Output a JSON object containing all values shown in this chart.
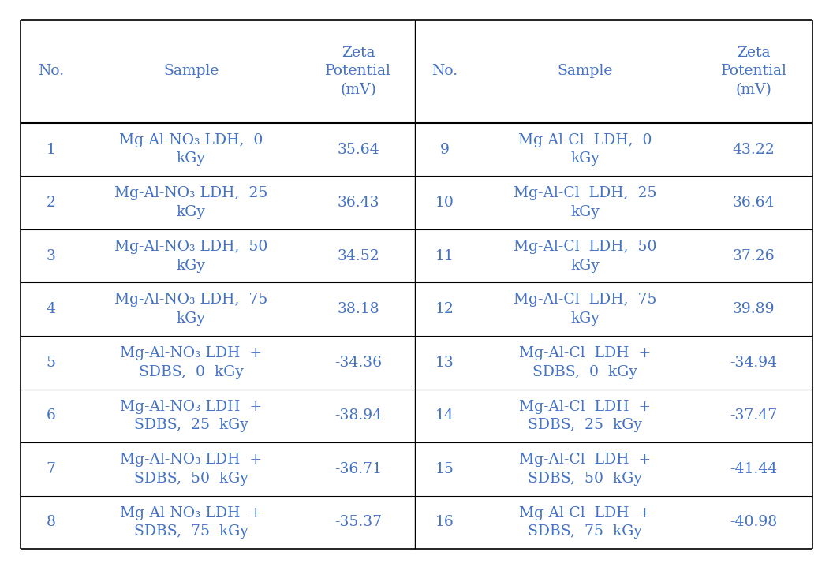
{
  "background_color": "#ffffff",
  "text_color": "#4472c4",
  "line_color": "#000000",
  "col_header_left": [
    "No.",
    "Sample",
    "Zeta\nPotential\n(mV)"
  ],
  "col_header_right": [
    "No.",
    "Sample",
    "Zeta\nPotential\n(mV)"
  ],
  "rows_left": [
    [
      "1",
      "Mg-Al-NO₃ LDH,  0\nkGy",
      "35.64"
    ],
    [
      "2",
      "Mg-Al-NO₃ LDH,  25\nkGy",
      "36.43"
    ],
    [
      "3",
      "Mg-Al-NO₃ LDH,  50\nkGy",
      "34.52"
    ],
    [
      "4",
      "Mg-Al-NO₃ LDH,  75\nkGy",
      "38.18"
    ],
    [
      "5",
      "Mg-Al-NO₃ LDH  +\nSDBS,  0  kGy",
      "-34.36"
    ],
    [
      "6",
      "Mg-Al-NO₃ LDH  +\nSDBS,  25  kGy",
      "-38.94"
    ],
    [
      "7",
      "Mg-Al-NO₃ LDH  +\nSDBS,  50  kGy",
      "-36.71"
    ],
    [
      "8",
      "Mg-Al-NO₃ LDH  +\nSDBS,  75  kGy",
      "-35.37"
    ]
  ],
  "rows_right": [
    [
      "9",
      "Mg-Al-Cl  LDH,  0\nkGy",
      "43.22"
    ],
    [
      "10",
      "Mg-Al-Cl  LDH,  25\nkGy",
      "36.64"
    ],
    [
      "11",
      "Mg-Al-Cl  LDH,  50\nkGy",
      "37.26"
    ],
    [
      "12",
      "Mg-Al-Cl  LDH,  75\nkGy",
      "39.89"
    ],
    [
      "13",
      "Mg-Al-Cl  LDH  +\nSDBS,  0  kGy",
      "-34.94"
    ],
    [
      "14",
      "Mg-Al-Cl  LDH  +\nSDBS,  25  kGy",
      "-37.47"
    ],
    [
      "15",
      "Mg-Al-Cl  LDH  +\nSDBS,  50  kGy",
      "-41.44"
    ],
    [
      "16",
      "Mg-Al-Cl  LDH  +\nSDBS,  75  kGy",
      "-40.98"
    ]
  ],
  "figsize": [
    10.56,
    7.14
  ],
  "dpi": 100,
  "font_size": 13.5,
  "header_font_size": 13.5
}
